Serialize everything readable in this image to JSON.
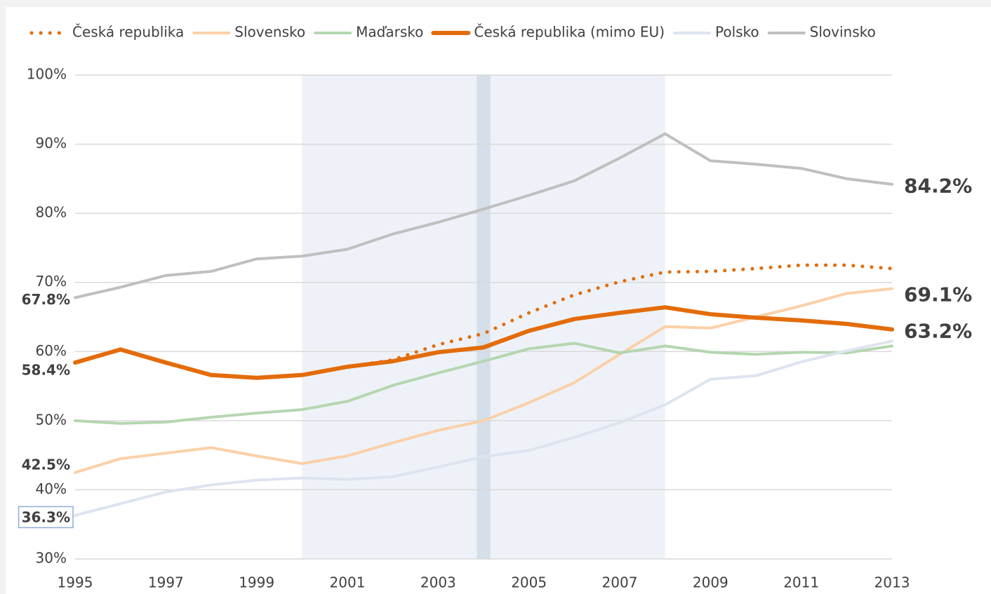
{
  "chart_data": {
    "type": "line",
    "x": [
      1995,
      1996,
      1997,
      1998,
      1999,
      2000,
      2001,
      2002,
      2003,
      2004,
      2005,
      2006,
      2007,
      2008,
      2009,
      2010,
      2011,
      2012,
      2013
    ],
    "xlim": [
      1995,
      2013
    ],
    "xticks": [
      1995,
      1997,
      1999,
      2001,
      2003,
      2005,
      2007,
      2009,
      2011,
      2013
    ],
    "ylim": [
      30,
      100
    ],
    "yticks": [
      {
        "value": 30,
        "label": "30%"
      },
      {
        "value": 40,
        "label": "40%"
      },
      {
        "value": 50,
        "label": "50%"
      },
      {
        "value": 60,
        "label": "60%"
      },
      {
        "value": 70,
        "label": "70%"
      },
      {
        "value": 80,
        "label": "80%"
      },
      {
        "value": 90,
        "label": "90%"
      },
      {
        "value": 100,
        "label": "100%"
      }
    ],
    "grid": true,
    "legend": "top",
    "shaded_regions": [
      {
        "from": 2000,
        "to": 2008,
        "color": "#eef2f8"
      },
      {
        "from": 2003.85,
        "to": 2004.15,
        "color": "#d5dfea"
      }
    ],
    "series": [
      {
        "name": "Česká republika",
        "color": "#e36c0a",
        "dash": "dotted",
        "width": 5,
        "values": [
          58.4,
          60.3,
          58.4,
          56.6,
          56.2,
          56.6,
          57.8,
          58.8,
          61.0,
          62.6,
          65.6,
          68.2,
          70.1,
          71.5,
          71.6,
          72.0,
          72.5,
          72.5,
          72.0
        ]
      },
      {
        "name": "Slovensko",
        "color": "#fbd0a8",
        "width": 4,
        "values": [
          42.5,
          44.5,
          45.3,
          46.1,
          44.9,
          43.8,
          44.9,
          46.8,
          48.6,
          50.0,
          52.6,
          55.5,
          59.6,
          63.6,
          63.4,
          65.0,
          66.6,
          68.4,
          69.1
        ],
        "value_labels": [
          "42.5%",
          null,
          null,
          null,
          null,
          null,
          null,
          null,
          null,
          null,
          null,
          null,
          null,
          null,
          null,
          null,
          null,
          null,
          "69.1%"
        ]
      },
      {
        "name": "Maďarsko",
        "color": "#b5d6b0",
        "width": 4,
        "values": [
          50.0,
          49.6,
          49.8,
          50.5,
          51.1,
          51.6,
          52.8,
          55.1,
          56.9,
          58.6,
          60.4,
          61.2,
          59.8,
          60.8,
          59.9,
          59.6,
          59.9,
          59.8,
          60.8
        ]
      },
      {
        "name": "Česká republika (mimo EU)",
        "color": "#e36c0a",
        "width": 6,
        "values": [
          58.4,
          60.3,
          58.4,
          56.6,
          56.2,
          56.6,
          57.8,
          58.6,
          59.9,
          60.6,
          63.0,
          64.7,
          65.6,
          66.4,
          65.4,
          64.9,
          64.5,
          64.0,
          63.2
        ],
        "value_labels": [
          "58.4%",
          null,
          null,
          null,
          null,
          null,
          null,
          null,
          null,
          null,
          null,
          null,
          null,
          null,
          null,
          null,
          null,
          null,
          "63.2%"
        ]
      },
      {
        "name": "Polsko",
        "color": "#dde4ef",
        "width": 4,
        "values": [
          36.3,
          38.0,
          39.7,
          40.7,
          41.4,
          41.7,
          41.5,
          41.9,
          43.3,
          44.8,
          45.7,
          47.6,
          49.7,
          52.3,
          56.0,
          56.5,
          58.5,
          60.1,
          61.5
        ],
        "value_labels": [
          "36.3%",
          null,
          null,
          null,
          null,
          null,
          null,
          null,
          null,
          null,
          null,
          null,
          null,
          null,
          null,
          null,
          null,
          null,
          null
        ]
      },
      {
        "name": "Slovinsko",
        "color": "#bfbfbf",
        "width": 4,
        "values": [
          67.8,
          69.3,
          71.0,
          71.6,
          73.4,
          73.8,
          74.8,
          77.0,
          78.7,
          80.6,
          82.6,
          84.7,
          88.0,
          91.5,
          87.6,
          87.1,
          86.5,
          85.0,
          84.2
        ],
        "value_labels": [
          "67.8%",
          null,
          null,
          null,
          null,
          null,
          null,
          null,
          null,
          null,
          null,
          null,
          null,
          null,
          null,
          null,
          null,
          null,
          "84.2%"
        ]
      }
    ]
  }
}
